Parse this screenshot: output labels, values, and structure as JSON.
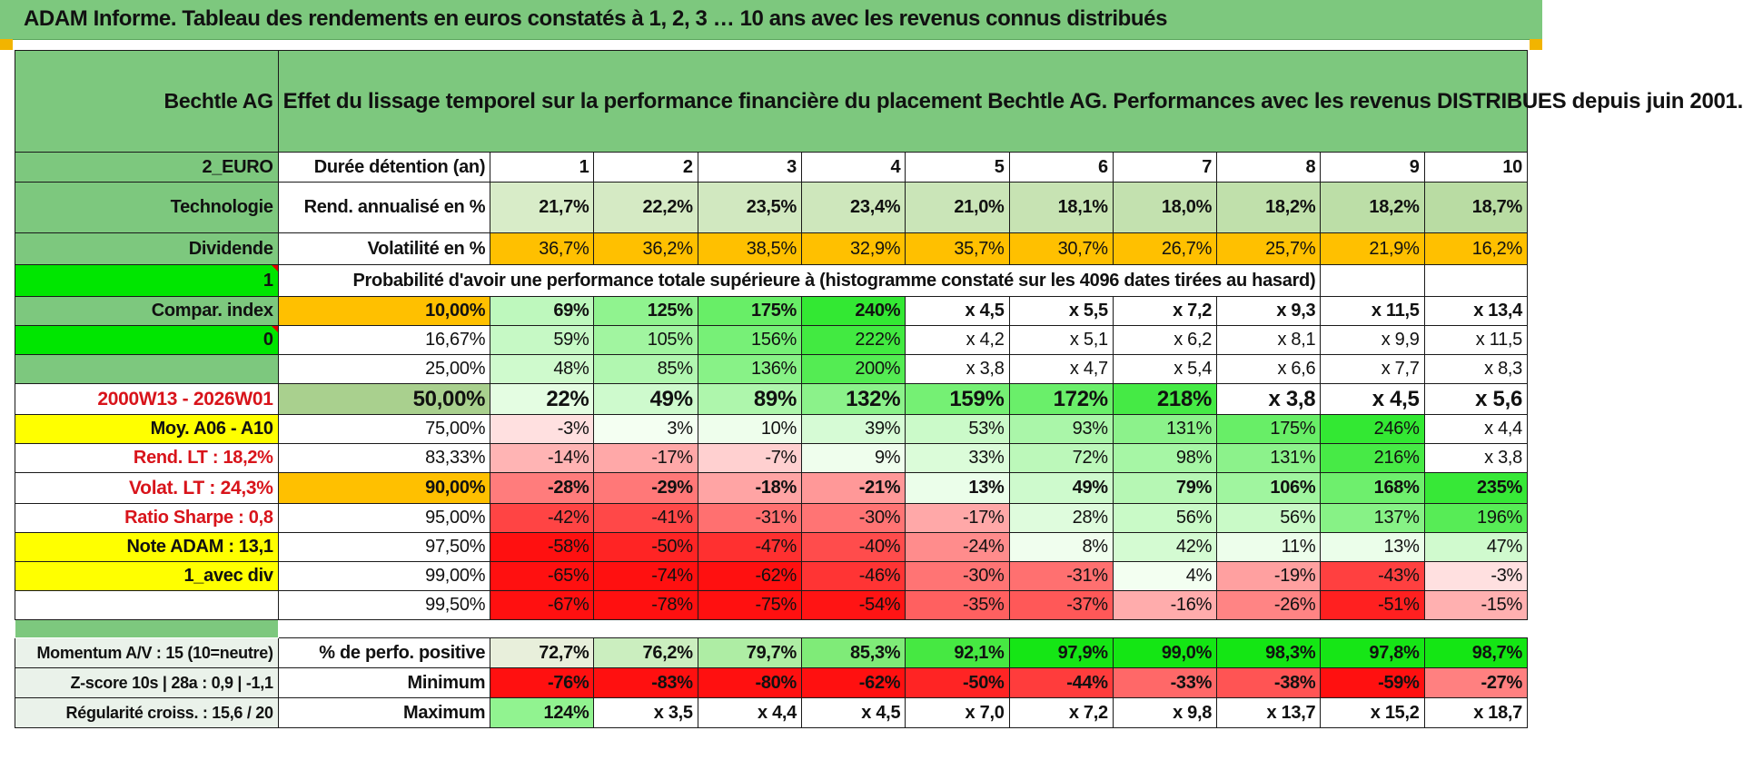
{
  "title": "ADAM Informe. Tableau des rendements en euros constatés à 1, 2, 3 … 10 ans avec les revenus connus distribués",
  "colors": {
    "header_green": "#7dc87e",
    "bright_green": "#00e600",
    "orange": "#ffc000",
    "yellow": "#ffff00",
    "red_text": "#d8141b",
    "cell_red": "#ff0000",
    "cell_green": "#33e833"
  },
  "header": {
    "name": "Bechtle AG",
    "description": "Effet du lissage temporel sur la performance financière du placement Bechtle AG. Performances avec les revenus DISTRIBUES depuis juin 2001."
  },
  "side": {
    "currency": "2_EURO",
    "sector": "Technologie",
    "type": "Dividende",
    "flag1": "1",
    "compar": "Compar. index",
    "flag0": "0",
    "empty": "",
    "period": "2000W13 - 2026W01",
    "moy": "Moy. A06 - A10",
    "rend_lt": "Rend. LT :    18,2%",
    "volat_lt": "Volat. LT :    24,3%",
    "sharpe": "Ratio Sharpe :     0,8",
    "note": "Note ADAM : 13,1",
    "avec_div": "1_avec div"
  },
  "years": [
    "1",
    "2",
    "3",
    "4",
    "5",
    "6",
    "7",
    "8",
    "9",
    "10"
  ],
  "duration_label": "Durée détention (an)",
  "rend": {
    "label": "Rend. annualisé en %",
    "values": [
      "21,7%",
      "22,2%",
      "23,5%",
      "23,4%",
      "21,0%",
      "18,1%",
      "18,0%",
      "18,2%",
      "18,2%",
      "18,7%"
    ]
  },
  "vol": {
    "label": "Volatilité en %",
    "values": [
      "36,7%",
      "36,2%",
      "38,5%",
      "32,9%",
      "35,7%",
      "30,7%",
      "26,7%",
      "25,7%",
      "21,9%",
      "16,2%"
    ]
  },
  "prob_label": "Probabilité d'avoir une performance totale supérieure à (histogramme constaté sur les 4096 dates tirées au hasard)",
  "quantiles": [
    {
      "p": "10,00%",
      "v": [
        "69%",
        "125%",
        "175%",
        "240%",
        "x 4,5",
        "x 5,5",
        "x 7,2",
        "x 9,3",
        "x 11,5",
        "x 13,4"
      ]
    },
    {
      "p": "16,67%",
      "v": [
        "59%",
        "105%",
        "156%",
        "222%",
        "x 4,2",
        "x 5,1",
        "x 6,2",
        "x 8,1",
        "x 9,9",
        "x 11,5"
      ]
    },
    {
      "p": "25,00%",
      "v": [
        "48%",
        "85%",
        "136%",
        "200%",
        "x 3,8",
        "x 4,7",
        "x 5,4",
        "x 6,6",
        "x 7,7",
        "x 8,3"
      ]
    },
    {
      "p": "50,00%",
      "v": [
        "22%",
        "49%",
        "89%",
        "132%",
        "159%",
        "172%",
        "218%",
        "x 3,8",
        "x 4,5",
        "x 5,6"
      ]
    },
    {
      "p": "75,00%",
      "v": [
        "-3%",
        "3%",
        "10%",
        "39%",
        "53%",
        "93%",
        "131%",
        "175%",
        "246%",
        "x 4,4"
      ]
    },
    {
      "p": "83,33%",
      "v": [
        "-14%",
        "-17%",
        "-7%",
        "9%",
        "33%",
        "72%",
        "98%",
        "131%",
        "216%",
        "x 3,8"
      ]
    },
    {
      "p": "90,00%",
      "v": [
        "-28%",
        "-29%",
        "-18%",
        "-21%",
        "13%",
        "49%",
        "79%",
        "106%",
        "168%",
        "235%"
      ]
    },
    {
      "p": "95,00%",
      "v": [
        "-42%",
        "-41%",
        "-31%",
        "-30%",
        "-17%",
        "28%",
        "56%",
        "56%",
        "137%",
        "196%"
      ]
    },
    {
      "p": "97,50%",
      "v": [
        "-58%",
        "-50%",
        "-47%",
        "-40%",
        "-24%",
        "8%",
        "42%",
        "11%",
        "13%",
        "47%"
      ]
    },
    {
      "p": "99,00%",
      "v": [
        "-65%",
        "-74%",
        "-62%",
        "-46%",
        "-30%",
        "-31%",
        "4%",
        "-19%",
        "-43%",
        "-3%"
      ]
    },
    {
      "p": "99,50%",
      "v": [
        "-67%",
        "-78%",
        "-75%",
        "-54%",
        "-35%",
        "-37%",
        "-16%",
        "-26%",
        "-51%",
        "-15%"
      ]
    }
  ],
  "bottom": {
    "momentum": "Momentum A/V : 15 (10=neutre)",
    "zscore": "Z-score 10s | 28a : 0,9 | -1,1",
    "regularite": "Régularité croiss. : 15,6 / 20",
    "pos_label": "% de perfo. positive",
    "pos_values": [
      "72,7%",
      "76,2%",
      "79,7%",
      "85,3%",
      "92,1%",
      "97,9%",
      "99,0%",
      "98,3%",
      "97,8%",
      "98,7%"
    ],
    "min_label": "Minimum",
    "min_values": [
      "-76%",
      "-83%",
      "-80%",
      "-62%",
      "-50%",
      "-44%",
      "-33%",
      "-38%",
      "-59%",
      "-27%"
    ],
    "max_label": "Maximum",
    "max_values": [
      "124%",
      "x 3,5",
      "x 4,4",
      "x 4,5",
      "x 7,0",
      "x 7,2",
      "x 9,8",
      "x 13,7",
      "x 15,2",
      "x 18,7"
    ]
  }
}
